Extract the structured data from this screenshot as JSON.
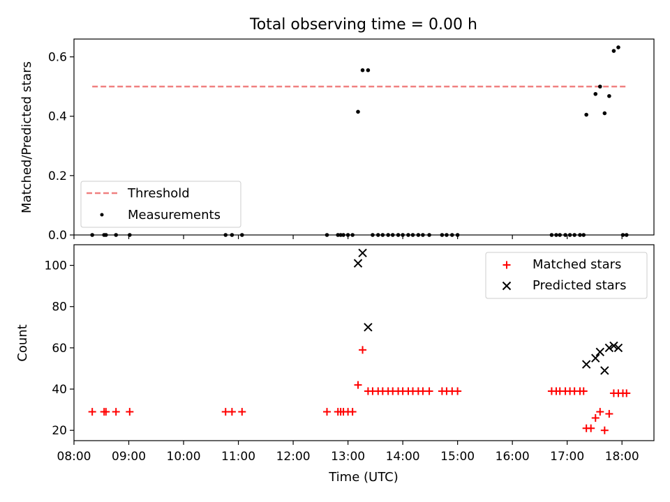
{
  "chart_data": {
    "type": "scatter",
    "title": "Total observing time = 0.00 h",
    "xlabel": "Time (UTC)",
    "xlim": [
      "08:00",
      "18:35"
    ],
    "x_ticks": [
      "08:00",
      "09:00",
      "10:00",
      "11:00",
      "12:00",
      "13:00",
      "14:00",
      "15:00",
      "16:00",
      "17:00",
      "18:00"
    ],
    "panels": [
      {
        "ylabel": "Matched/Predicted stars",
        "ylim": [
          0,
          0.66
        ],
        "y_ticks": [
          0.0,
          0.2,
          0.4,
          0.6
        ],
        "y_tick_labels": [
          "0.0",
          "0.2",
          "0.4",
          "0.6"
        ],
        "legend_position": "lower-left",
        "threshold": {
          "name": "Threshold",
          "value": 0.5,
          "x": [
            "08:20",
            "18:05"
          ],
          "color": "#f08080"
        },
        "series": [
          {
            "name": "Measurements",
            "marker": "dot",
            "color": "#000000",
            "points": [
              [
                "08:20",
                0
              ],
              [
                "08:33",
                0
              ],
              [
                "08:35",
                0
              ],
              [
                "08:46",
                0
              ],
              [
                "09:01",
                0
              ],
              [
                "10:46",
                0
              ],
              [
                "10:53",
                0
              ],
              [
                "11:04",
                0
              ],
              [
                "12:37",
                0
              ],
              [
                "12:49",
                0
              ],
              [
                "12:52",
                0
              ],
              [
                "12:55",
                0
              ],
              [
                "13:00",
                0
              ],
              [
                "13:05",
                0
              ],
              [
                "13:11",
                0.415
              ],
              [
                "13:16",
                0.555
              ],
              [
                "13:22",
                0.555
              ],
              [
                "13:27",
                0
              ],
              [
                "13:33",
                0
              ],
              [
                "13:38",
                0
              ],
              [
                "13:44",
                0
              ],
              [
                "13:49",
                0
              ],
              [
                "13:55",
                0
              ],
              [
                "14:00",
                0
              ],
              [
                "14:06",
                0
              ],
              [
                "14:11",
                0
              ],
              [
                "14:17",
                0
              ],
              [
                "14:22",
                0
              ],
              [
                "14:29",
                0
              ],
              [
                "14:43",
                0
              ],
              [
                "14:48",
                0
              ],
              [
                "14:54",
                0
              ],
              [
                "15:00",
                0
              ],
              [
                "16:43",
                0
              ],
              [
                "16:48",
                0
              ],
              [
                "16:52",
                0
              ],
              [
                "16:58",
                0
              ],
              [
                "17:03",
                0
              ],
              [
                "17:08",
                0
              ],
              [
                "17:14",
                0
              ],
              [
                "17:18",
                0
              ],
              [
                "17:21",
                0.405
              ],
              [
                "17:31",
                0.475
              ],
              [
                "17:36",
                0.5
              ],
              [
                "17:41",
                0.41
              ],
              [
                "17:46",
                0.468
              ],
              [
                "17:51",
                0.62
              ],
              [
                "17:56",
                0.632
              ],
              [
                "18:01",
                0
              ],
              [
                "18:05",
                0
              ]
            ]
          }
        ]
      },
      {
        "ylabel": "Count",
        "ylim": [
          15,
          110
        ],
        "y_ticks": [
          20,
          40,
          60,
          80,
          100
        ],
        "y_tick_labels": [
          "20",
          "40",
          "60",
          "80",
          "100"
        ],
        "legend_position": "upper-right",
        "series": [
          {
            "name": "Matched stars",
            "marker": "plus",
            "color": "#ff0000",
            "points": [
              [
                "08:20",
                29
              ],
              [
                "08:33",
                29
              ],
              [
                "08:35",
                29
              ],
              [
                "08:46",
                29
              ],
              [
                "09:01",
                29
              ],
              [
                "10:46",
                29
              ],
              [
                "10:53",
                29
              ],
              [
                "11:04",
                29
              ],
              [
                "12:37",
                29
              ],
              [
                "12:49",
                29
              ],
              [
                "12:52",
                29
              ],
              [
                "12:55",
                29
              ],
              [
                "13:00",
                29
              ],
              [
                "13:05",
                29
              ],
              [
                "13:11",
                42
              ],
              [
                "13:16",
                59
              ],
              [
                "13:22",
                39
              ],
              [
                "13:27",
                39
              ],
              [
                "13:33",
                39
              ],
              [
                "13:38",
                39
              ],
              [
                "13:44",
                39
              ],
              [
                "13:49",
                39
              ],
              [
                "13:55",
                39
              ],
              [
                "14:00",
                39
              ],
              [
                "14:06",
                39
              ],
              [
                "14:11",
                39
              ],
              [
                "14:17",
                39
              ],
              [
                "14:22",
                39
              ],
              [
                "14:29",
                39
              ],
              [
                "14:43",
                39
              ],
              [
                "14:48",
                39
              ],
              [
                "14:54",
                39
              ],
              [
                "15:00",
                39
              ],
              [
                "16:43",
                39
              ],
              [
                "16:48",
                39
              ],
              [
                "16:52",
                39
              ],
              [
                "16:58",
                39
              ],
              [
                "17:03",
                39
              ],
              [
                "17:08",
                39
              ],
              [
                "17:14",
                39
              ],
              [
                "17:18",
                39
              ],
              [
                "17:21",
                21
              ],
              [
                "17:26",
                21
              ],
              [
                "17:31",
                26
              ],
              [
                "17:36",
                29
              ],
              [
                "17:41",
                20
              ],
              [
                "17:46",
                28
              ],
              [
                "17:51",
                38
              ],
              [
                "17:56",
                38
              ],
              [
                "18:01",
                38
              ],
              [
                "18:05",
                38
              ]
            ]
          },
          {
            "name": "Predicted stars",
            "marker": "x",
            "color": "#000000",
            "points": [
              [
                "13:11",
                101
              ],
              [
                "13:16",
                106
              ],
              [
                "13:22",
                70
              ],
              [
                "17:21",
                52
              ],
              [
                "17:31",
                55
              ],
              [
                "17:36",
                58
              ],
              [
                "17:41",
                49
              ],
              [
                "17:46",
                60
              ],
              [
                "17:51",
                61
              ],
              [
                "17:56",
                60
              ]
            ]
          }
        ]
      }
    ]
  }
}
